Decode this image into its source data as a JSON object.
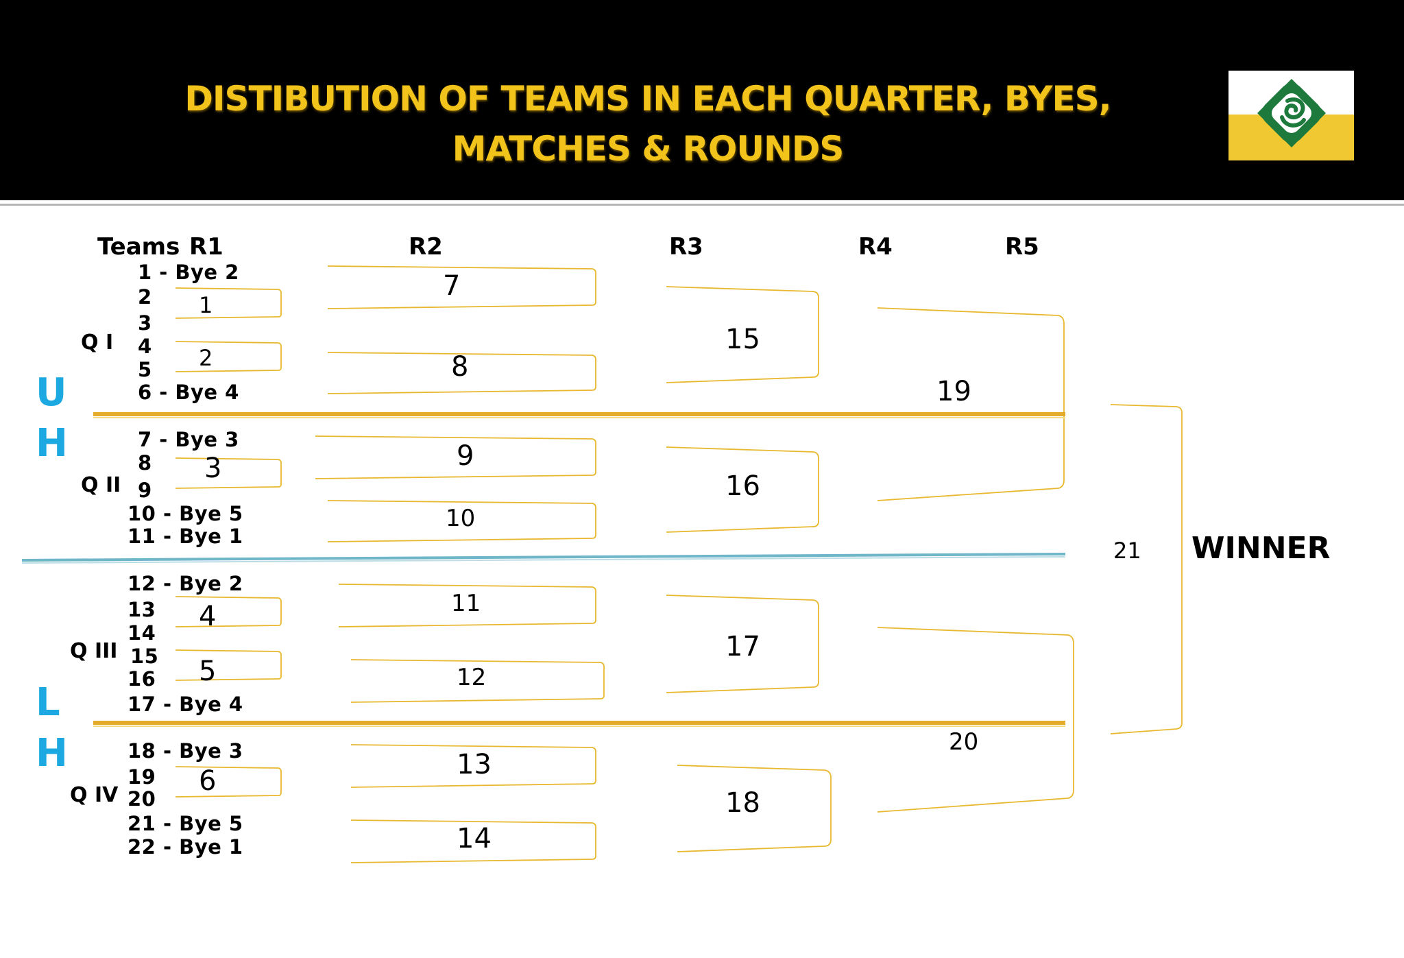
{
  "title": "DISTIBUTION OF TEAMS IN EACH QUARTER, BYES, MATCHES & ROUNDS",
  "title_line1": "DISTIBUTION OF TEAMS IN EACH QUARTER, BYES,",
  "title_line2": "MATCHES & ROUNDS",
  "colors": {
    "header_bg": "#000000",
    "title": "#f2c31b",
    "bracket": "#e8b830",
    "quarter_divider": "#e2a920",
    "half_divider": "#6fb6c9",
    "half_label": "#1ca8e0"
  },
  "logo": {
    "name": "logo-emblem",
    "colors": [
      "#1e7a3c",
      "#f0c832"
    ]
  },
  "columns": {
    "teams": "Teams",
    "r1": "R1",
    "r2": "R2",
    "r3": "R3",
    "r4": "R4",
    "r5": "R5"
  },
  "half_labels": {
    "upper": [
      "U",
      "H"
    ],
    "lower": [
      "L",
      "H"
    ]
  },
  "quarters": [
    "Q I",
    "Q II",
    "Q III",
    "Q IV"
  ],
  "teams": [
    "1 - Bye 2",
    "2",
    "3",
    "4",
    "5",
    "6 - Bye 4",
    "7 - Bye 3",
    "8",
    "9",
    "10 - Bye 5",
    "11 - Bye 1",
    "12 - Bye 2",
    "13",
    "14",
    "15",
    "16",
    "17 - Bye 4",
    "18 - Bye 3",
    "19",
    "20",
    "21 - Bye 5",
    "22 - Bye 1"
  ],
  "matches": {
    "r1": [
      "1",
      "2",
      "3",
      "4",
      "5",
      "6"
    ],
    "r2": [
      "7",
      "8",
      "9",
      "10",
      "11",
      "12",
      "13",
      "14"
    ],
    "r3": [
      "15",
      "16",
      "17",
      "18"
    ],
    "r4": [
      "19",
      "20"
    ],
    "r5": [
      "21"
    ]
  },
  "winner": "WINNER"
}
